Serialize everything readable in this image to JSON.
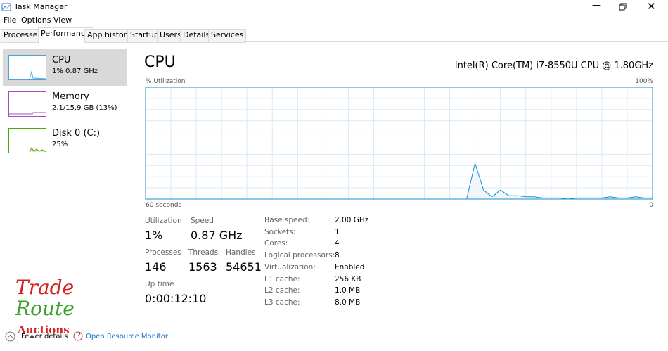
{
  "window": {
    "title": "Task Manager"
  },
  "menu": [
    "File",
    "Options",
    "View"
  ],
  "tabs": [
    "Processes",
    "Performance",
    "App history",
    "Startup",
    "Users",
    "Details",
    "Services"
  ],
  "sidebar": [
    {
      "name": "CPU",
      "detail": "1% 0.87 GHz"
    },
    {
      "name": "Memory",
      "detail": "2.1/15.9 GB (13%)"
    },
    {
      "name": "Disk 0 (C:)",
      "detail": "25%"
    }
  ],
  "header": {
    "title": "CPU",
    "processor": "Intel(R) Core(TM) i7-8550U CPU @ 1.80GHz"
  },
  "graph": {
    "y_label": "% Utilization",
    "max_label": "100%",
    "x_label": "60 seconds",
    "min_label": "0",
    "ylim": [
      0,
      100
    ],
    "values": [
      null,
      null,
      null,
      null,
      null,
      null,
      null,
      null,
      null,
      null,
      null,
      null,
      null,
      null,
      null,
      null,
      null,
      null,
      null,
      null,
      null,
      null,
      null,
      null,
      null,
      null,
      null,
      null,
      null,
      null,
      null,
      null,
      null,
      null,
      null,
      null,
      null,
      null,
      0,
      32,
      8,
      2,
      8,
      3,
      3,
      2,
      2,
      1,
      1,
      1,
      0,
      1,
      1,
      1,
      1,
      2,
      1,
      1,
      2,
      1,
      1
    ]
  },
  "stats": [
    {
      "label": "Utilization",
      "value": "1%"
    },
    {
      "label": "Speed",
      "value": "0.87 GHz"
    },
    {
      "label": "Processes",
      "value": "146"
    },
    {
      "label": "Threads",
      "value": "1563"
    },
    {
      "label": "Handles",
      "value": "54651"
    },
    {
      "label": "Up time",
      "value": "0:00:12:10"
    }
  ],
  "specs": [
    {
      "label": "Base speed:",
      "value": "2.00 GHz"
    },
    {
      "label": "Sockets:",
      "value": "1"
    },
    {
      "label": "Cores:",
      "value": "4"
    },
    {
      "label": "Logical processors:",
      "value": "8"
    },
    {
      "label": "Virtualization:",
      "value": "Enabled"
    },
    {
      "label": "L1 cache:",
      "value": "256 KB"
    },
    {
      "label": "L2 cache:",
      "value": "1.0 MB"
    },
    {
      "label": "L3 cache:",
      "value": "8.0 MB"
    }
  ],
  "footer": {
    "fewer": "Fewer details",
    "monitor": "Open Resource Monitor"
  },
  "watermark": [
    "Trade",
    "Route",
    "Auctions"
  ]
}
